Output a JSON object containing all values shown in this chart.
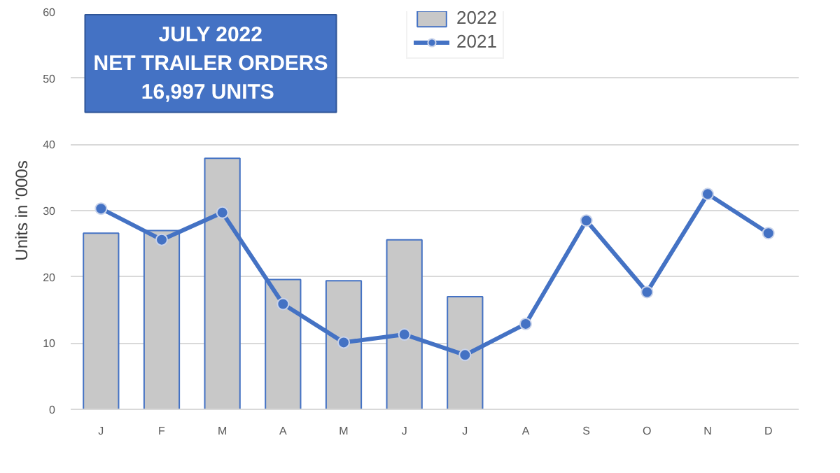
{
  "chart_data": {
    "type": "bar",
    "title": "JULY 2022\nNET TRAILER ORDERS\n16,997  UNITS",
    "ylabel": "Units in '000s",
    "categories": [
      "J",
      "F",
      "M",
      "A",
      "M",
      "J",
      "J",
      "A",
      "S",
      "O",
      "N",
      "D"
    ],
    "series": [
      {
        "name": "2022",
        "color": "#c8c8c8",
        "values": [
          26.6,
          27.0,
          37.9,
          19.6,
          19.4,
          25.6,
          17.0,
          null,
          null,
          null,
          null,
          null
        ]
      },
      {
        "name": "2021",
        "type": "line",
        "color": "#4472c4",
        "values": [
          30.3,
          25.6,
          29.7,
          15.9,
          10.1,
          11.3,
          8.2,
          12.9,
          28.5,
          17.7,
          32.5,
          26.6
        ]
      }
    ],
    "ylim": [
      0,
      60
    ],
    "yticks": [
      0,
      10,
      20,
      30,
      40,
      50,
      60
    ],
    "grid": "y",
    "legend": "top",
    "marker": "circle"
  }
}
